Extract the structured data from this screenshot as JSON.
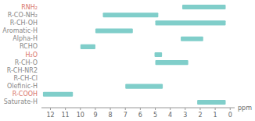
{
  "chart_data": {
    "type": "range",
    "orientation": "horizontal",
    "x_label": "ppm",
    "categories": [
      "RNH₂",
      "R-CO-NH₂",
      "R-CH-OH",
      "Aromatic-H",
      "Alpha-H",
      "RCHO",
      "H₂O",
      "R-CH-O",
      "R-CH-NR2",
      "R-CH-Cl",
      "Olefinic-H",
      "R-COOH",
      "Saturate-H"
    ],
    "values": [
      [
        0.3,
        3.2
      ],
      [
        4.8,
        8.5
      ],
      [
        0.3,
        5.0
      ],
      [
        6.5,
        9.0
      ],
      [
        1.8,
        3.3
      ],
      [
        9.0,
        10.0
      ],
      [
        4.55,
        5.05
      ],
      [
        2.8,
        5.0
      ],
      null,
      null,
      [
        4.5,
        7.0
      ],
      [
        10.5,
        12.5
      ],
      [
        0.3,
        2.2
      ]
    ],
    "color": "#80CECA",
    "colors": [
      "#d9746a",
      "#888888",
      "#888888",
      "#888888",
      "#888888",
      "#888888",
      "#d9746a",
      "#888888",
      "#888888",
      "#888888",
      "#888888",
      "#d9746a",
      "#888888"
    ],
    "xlim": [
      12.6,
      -0.3
    ],
    "xticks": [
      12,
      11,
      10,
      9,
      8,
      7,
      6,
      5,
      4,
      3,
      2,
      1,
      0
    ]
  }
}
